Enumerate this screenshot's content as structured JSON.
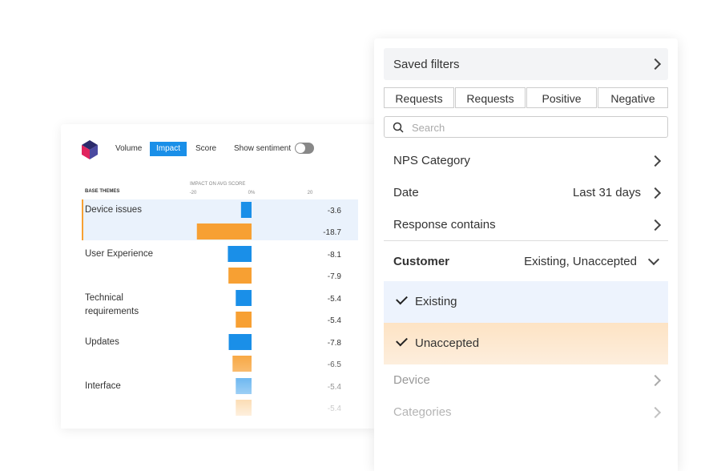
{
  "left_panel": {
    "view_toggles": [
      "Volume",
      "Impact",
      "Score"
    ],
    "active_toggle": 1,
    "sentiment_label": "Show sentiment",
    "themes_header": "BASE THEMES",
    "axis_title": "IMPACT ON AVG SCORE",
    "axis_ticks": [
      -20,
      {
        "value": 0,
        "label": "0%"
      },
      20
    ],
    "bar_colors": [
      "#1a8fe8",
      "#f7a033"
    ],
    "themes": [
      {
        "name": "Device issues",
        "values": [
          -3.6,
          -18.7
        ]
      },
      {
        "name": "User Experience",
        "values": [
          -8.1,
          -7.9
        ]
      },
      {
        "name": "Technical requirements",
        "values": [
          -5.4,
          -5.4
        ]
      },
      {
        "name": "Updates",
        "values": [
          -7.8,
          -6.5
        ]
      },
      {
        "name": "Interface",
        "values": [
          -5.4,
          -5.4
        ]
      }
    ]
  },
  "right_panel": {
    "saved_filters": "Saved filters",
    "tabs": [
      "Requests",
      "Requests",
      "Positive",
      "Negative"
    ],
    "search_placeholder": "Search",
    "filters": [
      {
        "label": "NPS Category"
      },
      {
        "label": "Date",
        "value": "Last 31 days"
      },
      {
        "label": "Response contains"
      }
    ],
    "customer": {
      "label": "Customer",
      "value": "Existing, Unaccepted",
      "options": [
        "Existing",
        "Unaccepted"
      ]
    },
    "more_filters": [
      "Device",
      "Categories"
    ]
  }
}
